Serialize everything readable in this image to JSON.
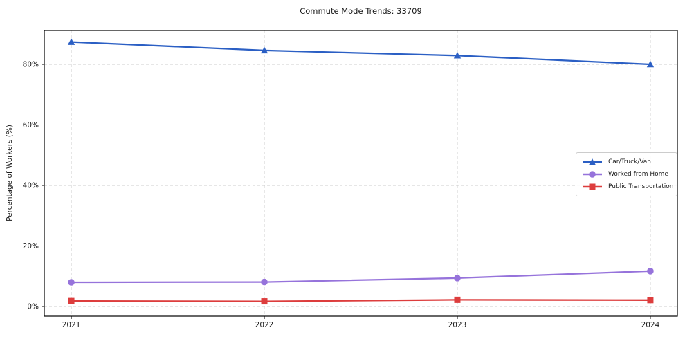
{
  "chart_data": {
    "type": "line",
    "title": "Commute Mode Trends: 33709",
    "xlabel": "",
    "ylabel": "Percentage of Workers (%)",
    "x": [
      2021,
      2022,
      2023,
      2024
    ],
    "xticklabels": [
      "2021",
      "2022",
      "2023",
      "2024"
    ],
    "yticks": [
      0,
      20,
      40,
      60,
      80
    ],
    "yticklabels": [
      "0%",
      "20%",
      "40%",
      "60%",
      "80%"
    ],
    "xlim": [
      2020.86,
      2024.14
    ],
    "ylim": [
      -3.2,
      91.2
    ],
    "grid": true,
    "grid_style": "dashed",
    "legend_position": "center-right",
    "background_color": "#ffffff",
    "frame_color": "#000000",
    "grid_color": "#cccccc",
    "series": [
      {
        "name": "Car/Truck/Van",
        "marker": "triangle",
        "color": "#2b5fc4",
        "values": [
          87.4,
          84.6,
          82.9,
          80.0
        ]
      },
      {
        "name": "Worked from Home",
        "marker": "circle",
        "color": "#9673db",
        "values": [
          8.0,
          8.1,
          9.4,
          11.7
        ]
      },
      {
        "name": "Public Transportation",
        "marker": "square",
        "color": "#dd3d3d",
        "values": [
          1.8,
          1.7,
          2.2,
          2.1
        ]
      }
    ]
  }
}
